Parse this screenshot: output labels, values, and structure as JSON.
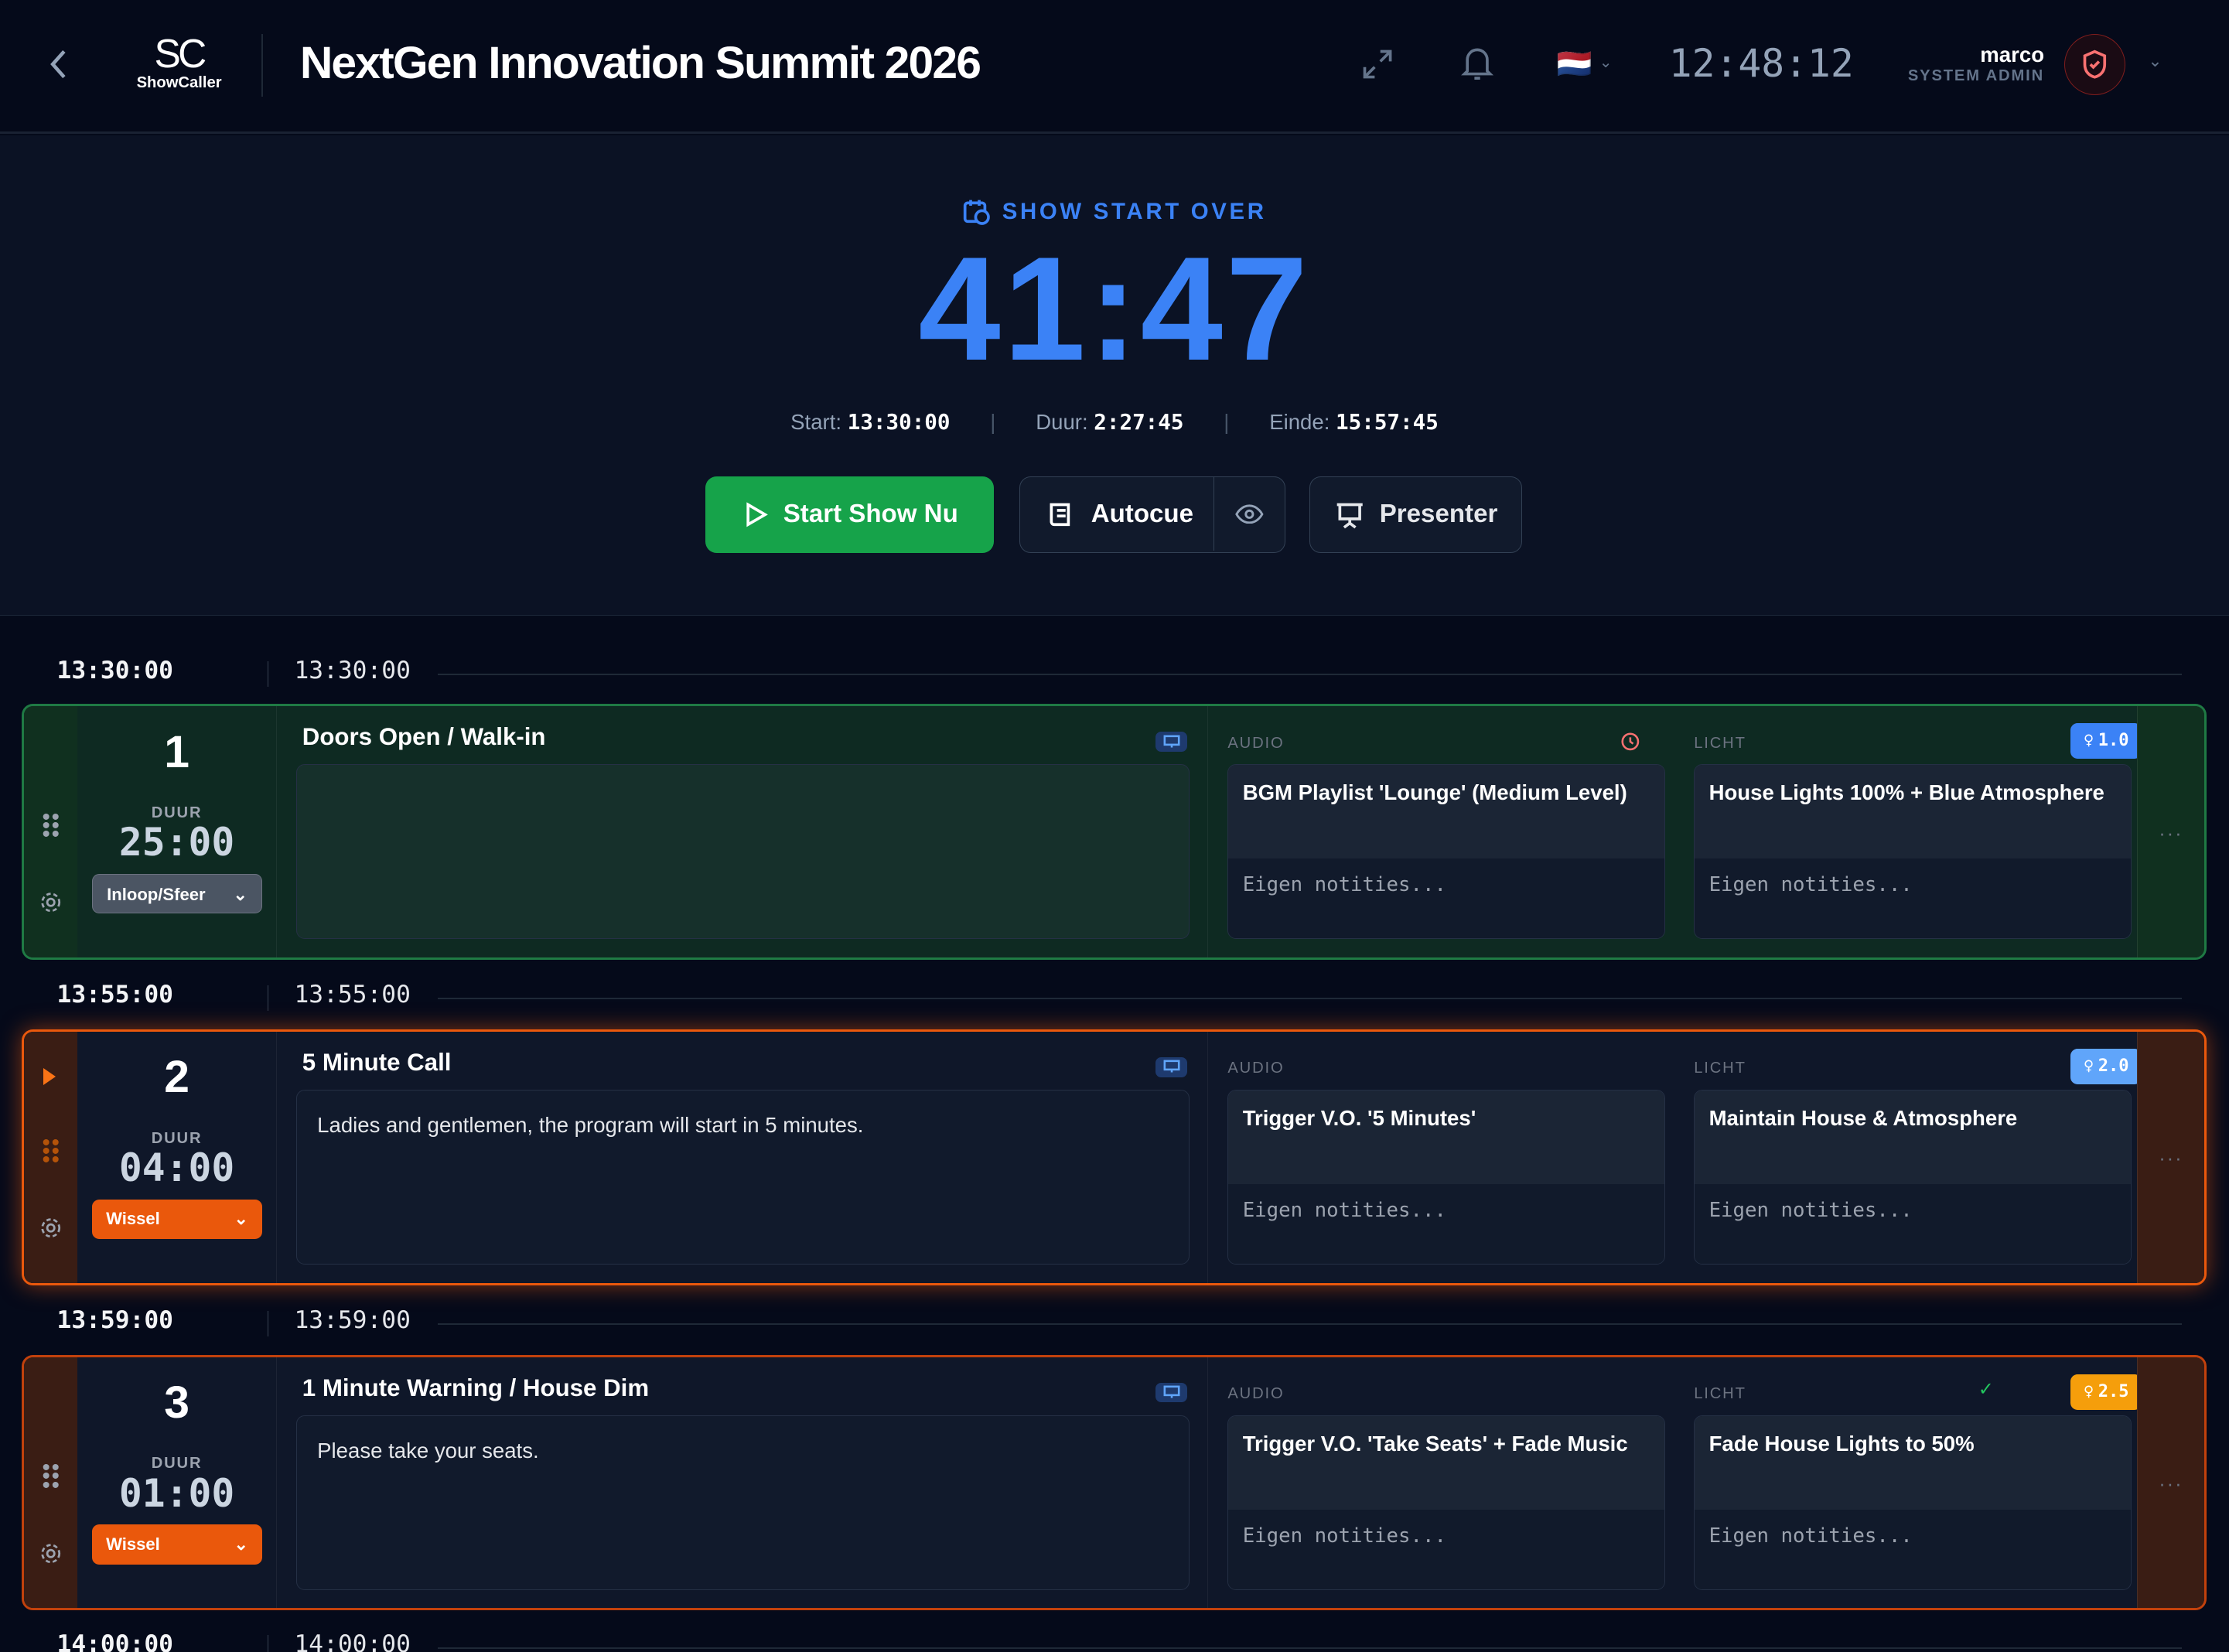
{
  "header": {
    "title": "NextGen Innovation Summit 2026",
    "logo_mark": "SC",
    "logo_text": "ShowCaller",
    "clock": "12:48:12",
    "language_flag": "🇳🇱",
    "user": {
      "name": "marco",
      "role": "SYSTEM ADMIN"
    }
  },
  "hero": {
    "label": "SHOW START OVER",
    "countdown": "41:47",
    "start_label": "Start:",
    "start": "13:30:00",
    "duration_label": "Duur:",
    "duration": "2:27:45",
    "end_label": "Einde:",
    "end": "15:57:45",
    "buttons": {
      "start": "Start Show Nu",
      "autocue": "Autocue",
      "presenter": "Presenter"
    }
  },
  "colors": {
    "accent": "#3b82f6",
    "start_button": "#16a34a",
    "active_border": "#ea580c",
    "done_border": "#1f7a44"
  },
  "cues": [
    {
      "separator_left": "13:30:00",
      "separator_right": "13:30:00",
      "number": "1",
      "duur_label": "DUUR",
      "duration": "25:00",
      "type": "Inloop/Sfeer",
      "title": "Doors Open / Walk-in",
      "script": "",
      "audio_label": "AUDIO",
      "audio": "BGM Playlist 'Lounge' (Medium Level)",
      "audio_notes": "Eigen notities...",
      "light_label": "LICHT",
      "light": "House Lights 100% + Blue Atmosphere",
      "light_notes": "Eigen notities...",
      "light_cue": "1.0",
      "status": "done",
      "audio_status_icon": "clock-icon"
    },
    {
      "separator_left": "13:55:00",
      "separator_right": "13:55:00",
      "number": "2",
      "duur_label": "DUUR",
      "duration": "04:00",
      "type": "Wissel",
      "title": "5 Minute Call",
      "script": "Ladies and gentlemen, the program will start in 5 minutes.",
      "audio_label": "AUDIO",
      "audio": "Trigger V.O. '5 Minutes'",
      "audio_notes": "Eigen notities...",
      "light_label": "LICHT",
      "light": "Maintain House & Atmosphere",
      "light_notes": "Eigen notities...",
      "light_cue": "2.0",
      "status": "active"
    },
    {
      "separator_left": "13:59:00",
      "separator_right": "13:59:00",
      "number": "3",
      "duur_label": "DUUR",
      "duration": "01:00",
      "type": "Wissel",
      "title": "1 Minute Warning / House Dim",
      "script": "Please take your seats.",
      "audio_label": "AUDIO",
      "audio": "Trigger V.O. 'Take Seats' + Fade Music",
      "audio_notes": "Eigen notities...",
      "light_label": "LICHT",
      "light": "Fade House Lights to 50%",
      "light_notes": "Eigen notities...",
      "light_cue": "2.5",
      "status": "upcoming",
      "light_status_icon": "check-icon"
    },
    {
      "separator_left": "14:00:00",
      "separator_right": "14:00:00"
    }
  ]
}
